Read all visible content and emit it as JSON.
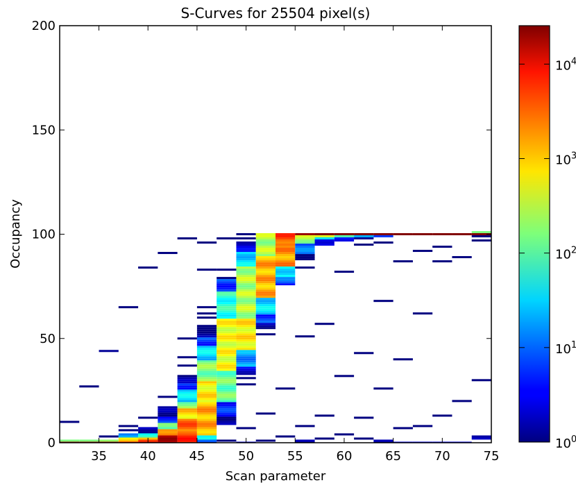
{
  "chart_data": {
    "type": "heatmap",
    "title": "S-Curves for 25504 pixel(s)",
    "xlabel": "Scan parameter",
    "ylabel": "Occupancy",
    "xlim": [
      31,
      75
    ],
    "ylim": [
      0,
      200
    ],
    "x_bin_width": 2,
    "x_ticks": [
      35,
      40,
      45,
      50,
      55,
      60,
      65,
      70,
      75
    ],
    "y_ticks": [
      0,
      50,
      100,
      150,
      200
    ],
    "colorbar": {
      "scale": "log",
      "colormap": "jet",
      "range": [
        1,
        25504
      ],
      "tick_bases": [
        "10",
        "10",
        "10",
        "10",
        "10"
      ],
      "tick_exponents": [
        "0",
        "1",
        "2",
        "3",
        "4"
      ]
    },
    "segments_note": "columns[i] = bin starting at xlim[0]+2i; each segment [occ_from, occ_to, log10_count]",
    "columns": [
      [
        [
          0,
          0,
          4.3
        ],
        [
          1,
          1,
          2.2
        ],
        [
          10,
          10,
          0
        ]
      ],
      [
        [
          0,
          0,
          4.3
        ],
        [
          1,
          1,
          2.2
        ],
        [
          27,
          27,
          0
        ]
      ],
      [
        [
          0,
          0,
          4.3
        ],
        [
          1,
          1,
          2.3
        ],
        [
          3,
          3,
          0
        ],
        [
          44,
          44,
          0.1
        ]
      ],
      [
        [
          0,
          0,
          4.0
        ],
        [
          1,
          1,
          3.0
        ],
        [
          2,
          2,
          2.8
        ],
        [
          3,
          4,
          1.2
        ],
        [
          6,
          6,
          0
        ],
        [
          8,
          8,
          0
        ],
        [
          65,
          65,
          0
        ]
      ],
      [
        [
          0,
          0,
          4.1
        ],
        [
          1,
          1,
          3.6
        ],
        [
          2,
          2,
          3.0
        ],
        [
          3,
          4,
          1.8
        ],
        [
          5,
          7,
          0.3
        ],
        [
          12,
          12,
          0
        ],
        [
          84,
          84,
          0
        ]
      ],
      [
        [
          0,
          3,
          4.1
        ],
        [
          4,
          6,
          3.4
        ],
        [
          7,
          9,
          2.0
        ],
        [
          10,
          12,
          0.8
        ],
        [
          13,
          17,
          0.05
        ],
        [
          22,
          22,
          0
        ],
        [
          91,
          91,
          0
        ]
      ],
      [
        [
          0,
          5,
          3.6
        ],
        [
          6,
          11,
          3.4
        ],
        [
          12,
          16,
          2.9
        ],
        [
          17,
          19,
          2.3
        ],
        [
          20,
          25,
          1.5
        ],
        [
          26,
          28,
          0.8
        ],
        [
          29,
          32,
          0.1
        ],
        [
          37,
          37,
          0
        ],
        [
          41,
          41,
          0
        ],
        [
          50,
          50,
          0
        ],
        [
          98,
          98,
          0
        ]
      ],
      [
        [
          0,
          1,
          0.8
        ],
        [
          2,
          3,
          1.5
        ],
        [
          4,
          19,
          3.1
        ],
        [
          20,
          29,
          2.8
        ],
        [
          30,
          39,
          2.2
        ],
        [
          40,
          46,
          1.5
        ],
        [
          47,
          50,
          0.8
        ],
        [
          51,
          55,
          0.05
        ],
        [
          56,
          56,
          0
        ],
        [
          60,
          60,
          0
        ],
        [
          62,
          62,
          0
        ],
        [
          65,
          65,
          0
        ],
        [
          83,
          83,
          0
        ],
        [
          96,
          96,
          0
        ]
      ],
      [
        [
          1,
          1,
          0
        ],
        [
          9,
          12,
          0.05
        ],
        [
          13,
          19,
          0.7
        ],
        [
          20,
          34,
          2.1
        ],
        [
          35,
          59,
          2.7
        ],
        [
          60,
          72,
          1.8
        ],
        [
          73,
          78,
          0.8
        ],
        [
          79,
          79,
          0
        ],
        [
          83,
          83,
          0
        ],
        [
          98,
          98,
          0
        ]
      ],
      [
        [
          0,
          0,
          0.3
        ],
        [
          7,
          7,
          0
        ],
        [
          28,
          28,
          0
        ],
        [
          31,
          31,
          0
        ],
        [
          33,
          36,
          0.4
        ],
        [
          37,
          44,
          1.2
        ],
        [
          45,
          59,
          2.8
        ],
        [
          60,
          84,
          2.4
        ],
        [
          85,
          91,
          1.5
        ],
        [
          92,
          96,
          0.4
        ],
        [
          98,
          98,
          0
        ],
        [
          100,
          100,
          0
        ]
      ],
      [
        [
          1,
          1,
          0
        ],
        [
          14,
          14,
          0
        ],
        [
          52,
          52,
          0
        ],
        [
          55,
          57,
          0.1
        ],
        [
          58,
          61,
          0.8
        ],
        [
          62,
          69,
          1.5
        ],
        [
          70,
          89,
          3.1
        ],
        [
          90,
          100,
          2.4
        ]
      ],
      [
        [
          3,
          3,
          0
        ],
        [
          26,
          26,
          0
        ],
        [
          76,
          76,
          0.6
        ],
        [
          77,
          79,
          0.9
        ],
        [
          80,
          84,
          1.6
        ],
        [
          85,
          94,
          3.2
        ],
        [
          95,
          100,
          3.5
        ]
      ],
      [
        [
          0,
          1,
          0.05
        ],
        [
          8,
          8,
          0
        ],
        [
          51,
          51,
          0
        ],
        [
          84,
          84,
          0
        ],
        [
          88,
          90,
          0.05
        ],
        [
          91,
          95,
          1.0
        ],
        [
          96,
          99,
          2.4
        ],
        [
          100,
          100,
          4.3
        ]
      ],
      [
        [
          2,
          2,
          0
        ],
        [
          13,
          13,
          0
        ],
        [
          57,
          57,
          0
        ],
        [
          95,
          97,
          0.6
        ],
        [
          98,
          98,
          1.5
        ],
        [
          99,
          99,
          2.6
        ],
        [
          100,
          100,
          4.4
        ]
      ],
      [
        [
          4,
          4,
          0
        ],
        [
          32,
          32,
          0
        ],
        [
          82,
          82,
          0
        ],
        [
          97,
          98,
          0.6
        ],
        [
          99,
          99,
          2.0
        ],
        [
          100,
          100,
          4.4
        ]
      ],
      [
        [
          2,
          2,
          0
        ],
        [
          12,
          12,
          0
        ],
        [
          43,
          43,
          0
        ],
        [
          95,
          95,
          0
        ],
        [
          98,
          98,
          0.1
        ],
        [
          99,
          99,
          1.3
        ],
        [
          100,
          100,
          4.4
        ]
      ],
      [
        [
          0,
          1,
          0.05
        ],
        [
          26,
          26,
          0
        ],
        [
          68,
          68,
          0
        ],
        [
          96,
          96,
          0
        ],
        [
          99,
          99,
          0.8
        ],
        [
          100,
          100,
          4.4
        ]
      ],
      [
        [
          0,
          0,
          0.4
        ],
        [
          7,
          7,
          0
        ],
        [
          40,
          40,
          0
        ],
        [
          87,
          87,
          0
        ],
        [
          100,
          100,
          4.4
        ]
      ],
      [
        [
          0,
          0,
          0.4
        ],
        [
          8,
          8,
          0
        ],
        [
          62,
          62,
          0
        ],
        [
          92,
          92,
          0
        ],
        [
          100,
          100,
          4.4
        ]
      ],
      [
        [
          0,
          0,
          0.4
        ],
        [
          13,
          13,
          0
        ],
        [
          87,
          87,
          0
        ],
        [
          94,
          94,
          0
        ],
        [
          100,
          100,
          4.4
        ]
      ],
      [
        [
          0,
          0,
          0.4
        ],
        [
          20,
          20,
          0
        ],
        [
          89,
          89,
          0
        ],
        [
          100,
          100,
          4.4
        ]
      ],
      [
        [
          2,
          3,
          0.05
        ],
        [
          30,
          30,
          0
        ],
        [
          97,
          97,
          0
        ],
        [
          99,
          99,
          0
        ],
        [
          100,
          100,
          4.4
        ],
        [
          101,
          101,
          2.2
        ]
      ]
    ]
  }
}
